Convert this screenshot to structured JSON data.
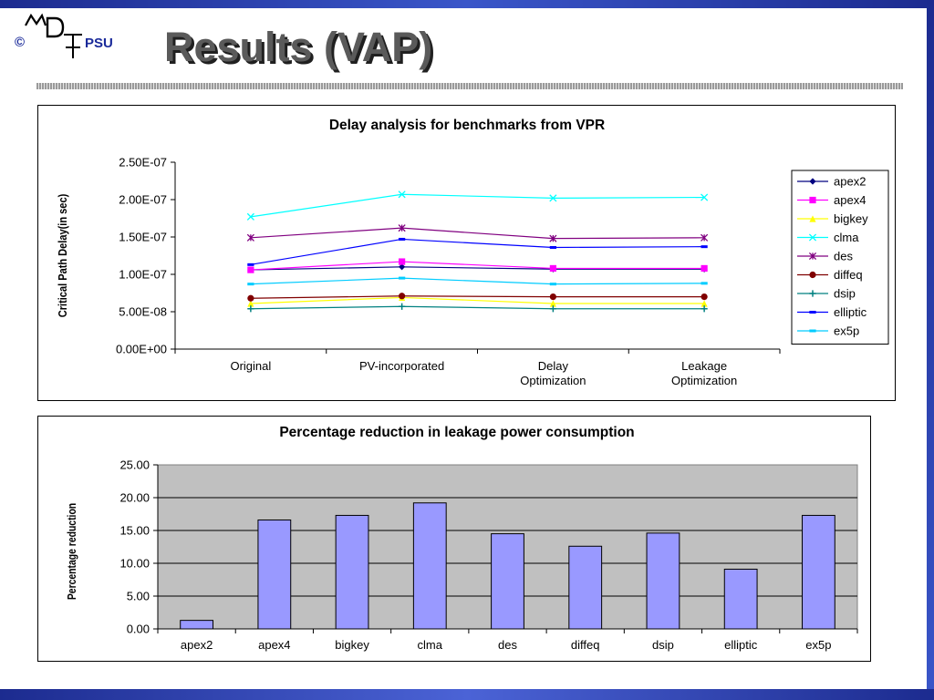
{
  "slide": {
    "title": "Results (VAP)",
    "logo_copyright": "©",
    "logo_text": "PSU",
    "colors": {
      "frame": "#2a3fb0",
      "title": "#5a5a5a",
      "title_shadow": "#202020"
    }
  },
  "chart_data": [
    {
      "type": "line",
      "title": "Delay analysis for benchmarks from VPR",
      "xlabel": "",
      "ylabel": "Critical Path Delay(in sec)",
      "categories": [
        [
          "Original"
        ],
        [
          "PV-incorporated"
        ],
        [
          "Delay",
          "Optimization"
        ],
        [
          "Leakage",
          "Optimization"
        ]
      ],
      "ylim": [
        0,
        2.5e-07
      ],
      "yticks": [
        "0.00E+00",
        "5.00E-08",
        "1.00E-07",
        "1.50E-07",
        "2.00E-07",
        "2.50E-07"
      ],
      "grid": false,
      "legend": "right",
      "series": [
        {
          "name": "apex2",
          "color": "#000080",
          "marker": "diamond",
          "values": [
            1.06e-07,
            1.1e-07,
            1.07e-07,
            1.07e-07
          ]
        },
        {
          "name": "apex4",
          "color": "#ff00ff",
          "marker": "square",
          "values": [
            1.06e-07,
            1.17e-07,
            1.08e-07,
            1.08e-07
          ]
        },
        {
          "name": "bigkey",
          "color": "#ffff00",
          "marker": "triangle",
          "values": [
            6.1e-08,
            6.9e-08,
            6.1e-08,
            6.1e-08
          ]
        },
        {
          "name": "clma",
          "color": "#00ffff",
          "marker": "x",
          "values": [
            1.77e-07,
            2.07e-07,
            2.02e-07,
            2.03e-07
          ]
        },
        {
          "name": "des",
          "color": "#800080",
          "marker": "star",
          "values": [
            1.49e-07,
            1.62e-07,
            1.48e-07,
            1.49e-07
          ]
        },
        {
          "name": "diffeq",
          "color": "#800000",
          "marker": "circle",
          "values": [
            6.8e-08,
            7.1e-08,
            7e-08,
            7e-08
          ]
        },
        {
          "name": "dsip",
          "color": "#008080",
          "marker": "plus",
          "values": [
            5.4e-08,
            5.7e-08,
            5.4e-08,
            5.4e-08
          ]
        },
        {
          "name": "elliptic",
          "color": "#0000ff",
          "marker": "dash",
          "values": [
            1.13e-07,
            1.47e-07,
            1.36e-07,
            1.37e-07
          ]
        },
        {
          "name": "ex5p",
          "color": "#00ccff",
          "marker": "dash",
          "values": [
            8.7e-08,
            9.5e-08,
            8.7e-08,
            8.8e-08
          ]
        }
      ]
    },
    {
      "type": "bar",
      "title": "Percentage reduction in leakage power consumption",
      "xlabel": "",
      "ylabel": "Percentage reduction",
      "categories": [
        "apex2",
        "apex4",
        "bigkey",
        "clma",
        "des",
        "diffeq",
        "dsip",
        "elliptic",
        "ex5p"
      ],
      "values": [
        1.3,
        16.6,
        17.3,
        19.2,
        14.5,
        12.6,
        14.6,
        9.1,
        17.3
      ],
      "ylim": [
        0,
        25
      ],
      "yticks": [
        "0.00",
        "5.00",
        "10.00",
        "15.00",
        "20.00",
        "25.00"
      ],
      "grid": true,
      "bar_color": "#9999ff",
      "plot_background": "#c0c0c0"
    }
  ]
}
